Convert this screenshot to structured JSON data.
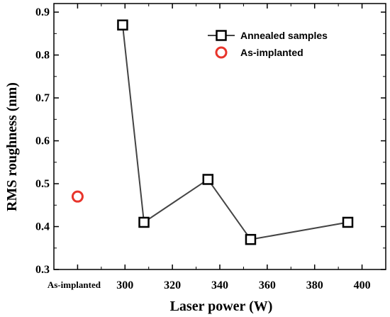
{
  "chart_data": {
    "type": "scatter",
    "xlabel": "Laser power (W)",
    "ylabel": "RMS roughness (nm)",
    "xlim": [
      270,
      410
    ],
    "ylim": [
      0.3,
      0.92
    ],
    "x_ticks": [
      300,
      320,
      340,
      360,
      380,
      400
    ],
    "y_ticks": [
      0.3,
      0.4,
      0.5,
      0.6,
      0.7,
      0.8,
      0.9
    ],
    "x_extra_tick": {
      "label": "As-implanted",
      "x": 280
    },
    "grid": false,
    "legend_position": "top-right",
    "series": [
      {
        "name": "Annealed samples",
        "marker": "square",
        "line": true,
        "color": "#000000",
        "line_color": "#444444",
        "x": [
          299,
          308,
          335,
          353,
          394
        ],
        "y": [
          0.87,
          0.41,
          0.51,
          0.37,
          0.41
        ]
      },
      {
        "name": "As-implanted",
        "marker": "circle",
        "line": false,
        "color": "#e8342b",
        "x": [
          280
        ],
        "y": [
          0.47
        ]
      }
    ]
  }
}
